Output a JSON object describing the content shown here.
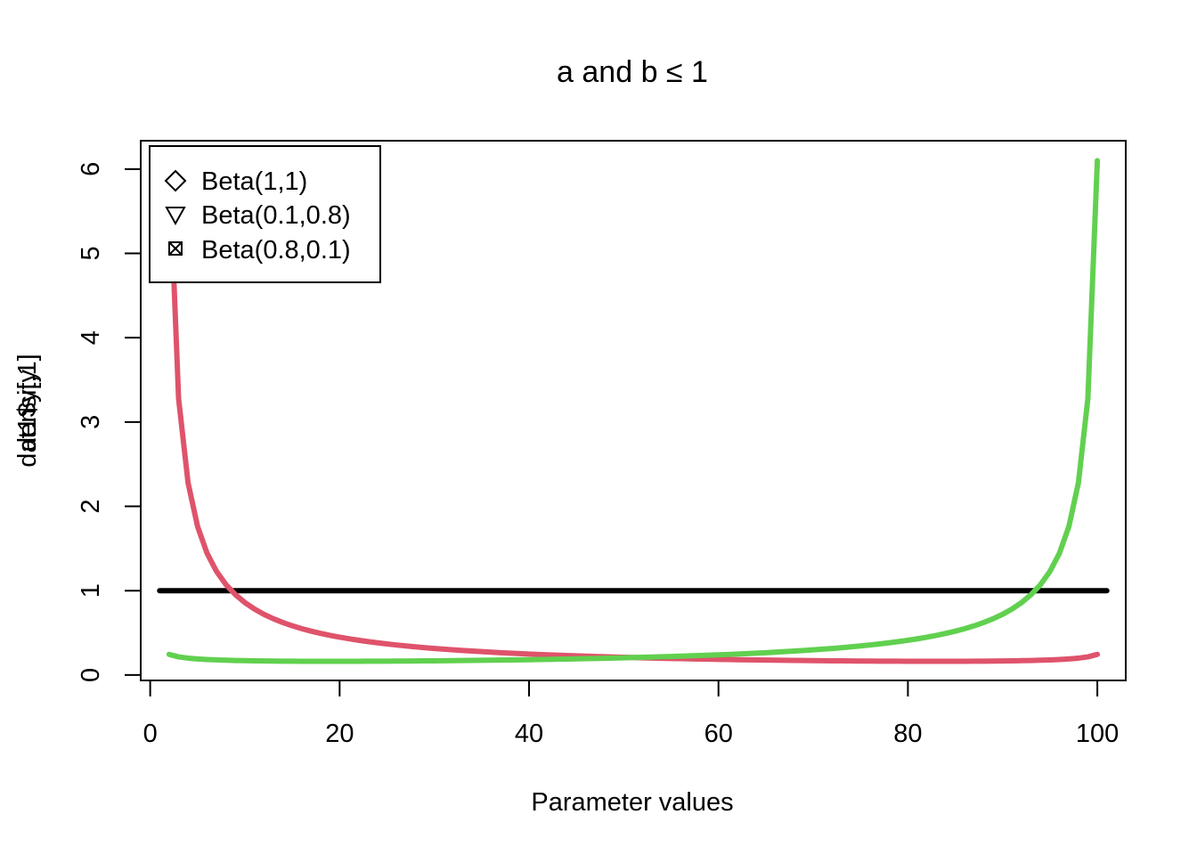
{
  "chart_data": {
    "type": "line",
    "title": "a and b  ≤ 1",
    "xlabel": "Parameter values",
    "ylabel_overlap": [
      "density",
      "dat1$y[,1]"
    ],
    "xlim": [
      -1.0,
      103.0
    ],
    "ylim": [
      -0.0645,
      6.336
    ],
    "x_ticks": [
      0,
      20,
      40,
      60,
      80,
      100
    ],
    "y_ticks": [
      0,
      1,
      2,
      3,
      4,
      5,
      6
    ],
    "legend": {
      "position": "top-left",
      "entries": [
        "Beta(1,1)",
        "Beta(0.1,0.8)",
        "Beta(0.8,0.1)"
      ],
      "symbols": [
        "diamond",
        "triangle-down",
        "boxed-x"
      ]
    },
    "series": [
      {
        "color": "#000000",
        "x_start": 1,
        "x_end": 101,
        "alpha": 1.0,
        "beta": 1.0
      },
      {
        "color": "#DF536B",
        "x_start": 2,
        "x_end": 100,
        "alpha": 0.1,
        "beta": 0.8
      },
      {
        "color": "#61D04F",
        "x_start": 2,
        "x_end": 100,
        "alpha": 0.8,
        "beta": 0.1
      }
    ]
  }
}
